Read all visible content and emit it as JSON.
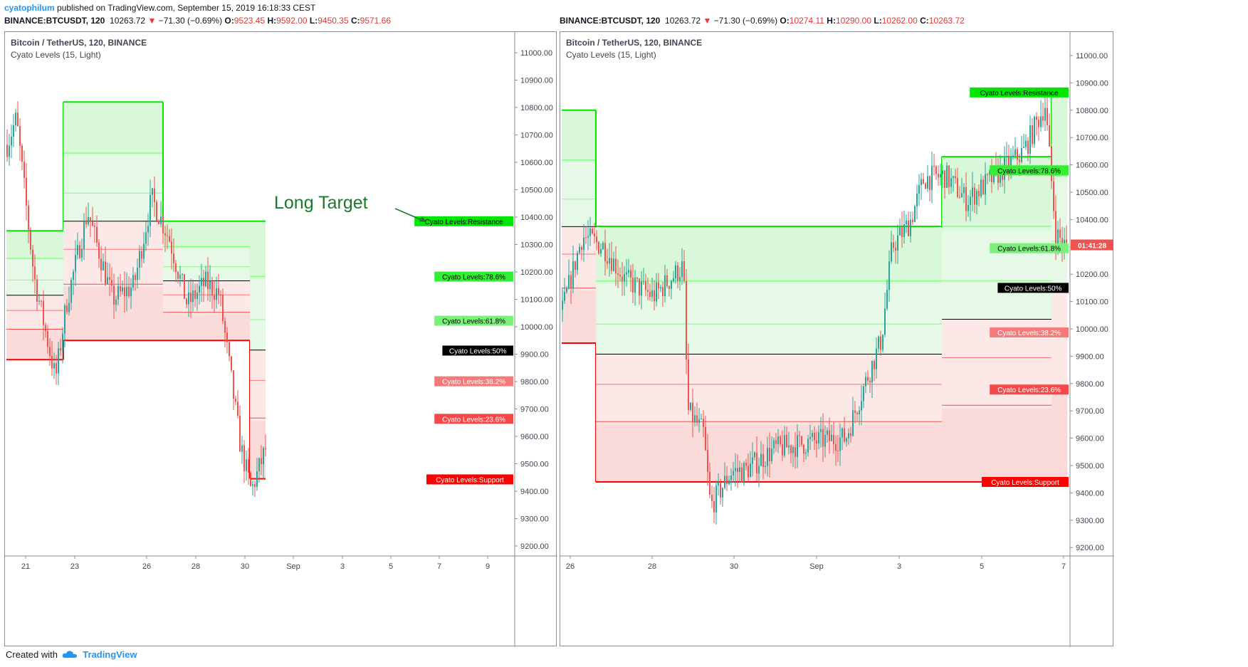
{
  "header": {
    "user": "cyatophilum",
    "published": "published on TradingView.com, September 15, 2019 16:18:33 CEST"
  },
  "left_quote": {
    "symbol": "BINANCE:BTCUSDT, 120",
    "price": "10263.72",
    "arrow": "▼",
    "change": "−71.30 (−0.69%)",
    "o": "O:",
    "o_val": "9523.45",
    "h": "H:",
    "h_val": "9592.00",
    "l": "L:",
    "l_val": "9450.35",
    "c": "C:",
    "c_val": "9571.66"
  },
  "right_quote": {
    "symbol": "BINANCE:BTCUSDT, 120",
    "price": "10263.72",
    "arrow": "▼",
    "change": "−71.30 (−0.69%)",
    "o": "O:",
    "o_val": "10274.11",
    "h": "H:",
    "h_val": "10290.00",
    "l": "L:",
    "l_val": "10262.00",
    "c": "C:",
    "c_val": "10263.72"
  },
  "footer": {
    "created": "Created with",
    "brand": "TradingView"
  },
  "colors": {
    "up": "#26a69a",
    "down": "#ef5350",
    "resistance": "#00e600",
    "support": "#ff0000",
    "mid": "#000000",
    "fib786": "#66ff66",
    "fib618": "#8cf58c",
    "fib382": "#f57a7a",
    "fib236": "#f54848"
  },
  "chart_data": [
    {
      "type": "candlestick",
      "title": "Bitcoin / TetherUS, 120, BINANCE",
      "indicator": "Cyato Levels (15, Light)",
      "ylim": [
        9150,
        11100
      ],
      "y_ticks": [
        "11000.00",
        "10900.00",
        "10800.00",
        "10700.00",
        "10600.00",
        "10500.00",
        "10400.00",
        "10300.00",
        "10200.00",
        "10100.00",
        "10000.00",
        "9900.00",
        "9800.00",
        "9700.00",
        "9600.00",
        "9500.00",
        "9400.00",
        "9300.00",
        "9200.00"
      ],
      "x_ticks": [
        "21",
        "23",
        "26",
        "28",
        "30",
        "Sep",
        "3",
        "5",
        "7",
        "9"
      ],
      "level_labels": [
        {
          "text": "Cyato Levels:Resistance",
          "value": 10385,
          "color": "#00e600",
          "fg": "#000000"
        },
        {
          "text": "Cyato Levels:78.6%",
          "value": 10183,
          "color": "#33ee33",
          "fg": "#000000"
        },
        {
          "text": "Cyato Levels:61.8%",
          "value": 10022,
          "color": "#7def7d",
          "fg": "#000000"
        },
        {
          "text": "Cyato Levels:50%",
          "value": 9913,
          "color": "#000000",
          "fg": "#ffffff"
        },
        {
          "text": "Cyato Levels:38.2%",
          "value": 9801,
          "color": "#f57a7a",
          "fg": "#ffffff"
        },
        {
          "text": "Cyato Levels:23.6%",
          "value": 9664,
          "color": "#f54848",
          "fg": "#ffffff"
        },
        {
          "text": "Cyato Levels:Support",
          "value": 9443,
          "color": "#ff0000",
          "fg": "#ffffff"
        }
      ],
      "annotation": "Long Target"
    },
    {
      "type": "candlestick",
      "title": "Bitcoin / TetherUS, 120, BINANCE",
      "indicator": "Cyato Levels (15, Light)",
      "ylim": [
        9150,
        11100
      ],
      "y_ticks": [
        "11000.00",
        "10900.00",
        "10800.00",
        "10700.00",
        "10600.00",
        "10500.00",
        "10400.00",
        "10300.00",
        "10200.00",
        "10100.00",
        "10000.00",
        "9900.00",
        "9800.00",
        "9700.00",
        "9600.00",
        "9500.00",
        "9400.00",
        "9300.00",
        "9200.00"
      ],
      "x_ticks": [
        "26",
        "28",
        "30",
        "Sep",
        "3",
        "5",
        "7"
      ],
      "price_tag": "10263.72",
      "countdown": "01:41:28",
      "level_labels": [
        {
          "text": "Cyato Levels:Resistance",
          "value": 10865,
          "color": "#00e600",
          "fg": "#000000"
        },
        {
          "text": "Cyato Levels:78.6%",
          "value": 10580,
          "color": "#33ee33",
          "fg": "#000000"
        },
        {
          "text": "Cyato Levels:61.8%",
          "value": 10295,
          "color": "#7def7d",
          "fg": "#000000"
        },
        {
          "text": "Cyato Levels:50%",
          "value": 10150,
          "color": "#000000",
          "fg": "#ffffff"
        },
        {
          "text": "Cyato Levels:38.2%",
          "value": 9987,
          "color": "#f57a7a",
          "fg": "#ffffff"
        },
        {
          "text": "Cyato Levels:23.6%",
          "value": 9778,
          "color": "#f54848",
          "fg": "#ffffff"
        },
        {
          "text": "Cyato Levels:Support",
          "value": 9440,
          "color": "#ff0000",
          "fg": "#ffffff"
        }
      ]
    }
  ]
}
